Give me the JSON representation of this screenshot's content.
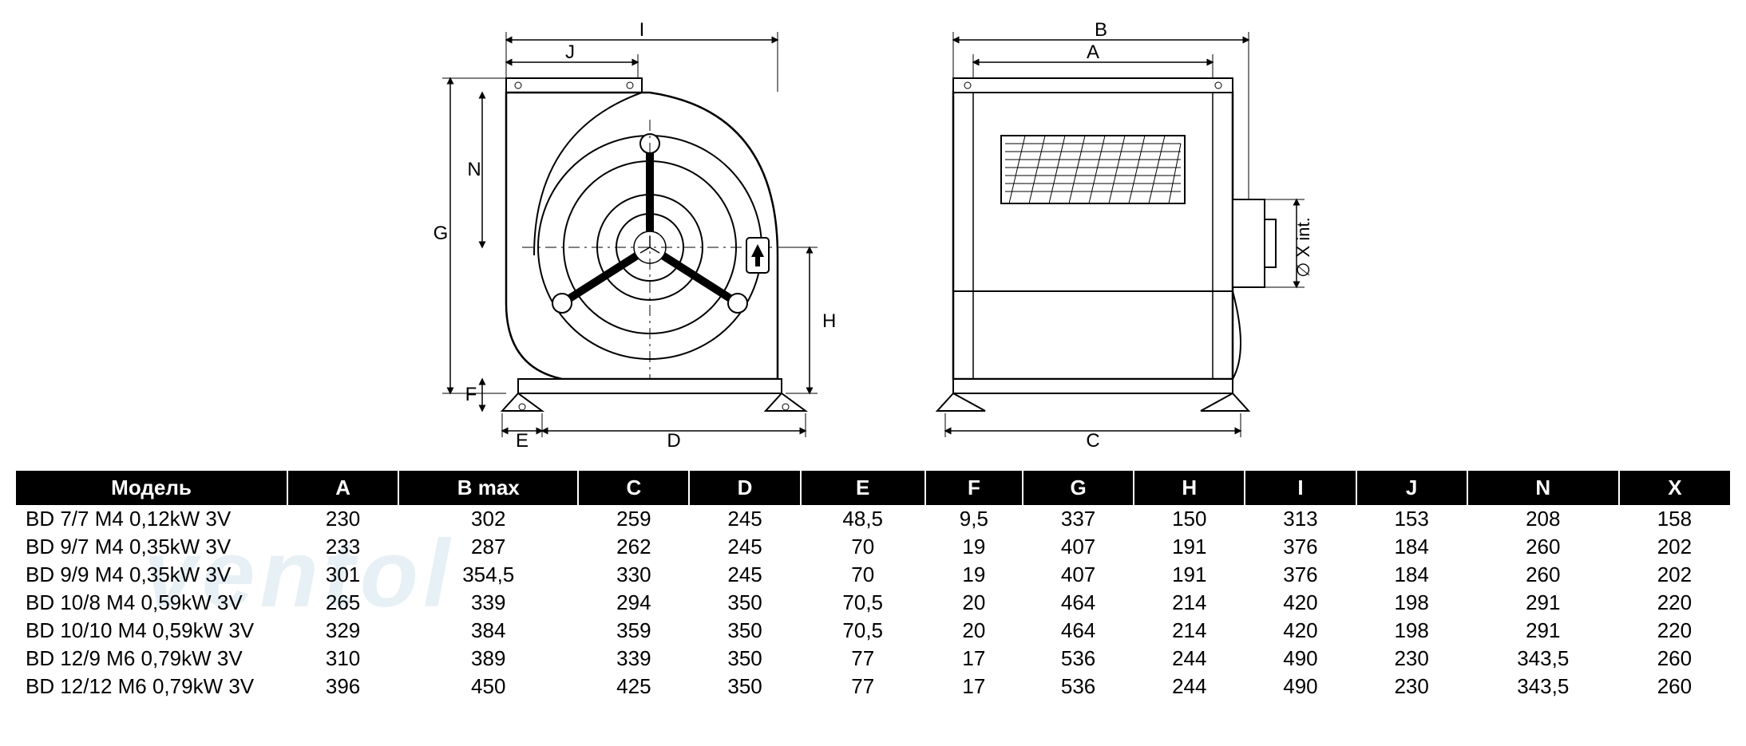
{
  "watermark_text": "ventol",
  "diagram_left": {
    "labels": {
      "I": "I",
      "J": "J",
      "G": "G",
      "N": "N",
      "F": "F",
      "E": "E",
      "D": "D",
      "H": "H"
    },
    "stroke": "#000000",
    "fill_hatch": "#bfbfbf"
  },
  "diagram_right": {
    "labels": {
      "B": "B",
      "A": "A",
      "C": "C",
      "X": "∅ X int."
    },
    "stroke": "#000000"
  },
  "table": {
    "header_bg": "#000000",
    "header_fg": "#ffffff",
    "columns": [
      "Модель",
      "A",
      "B max",
      "C",
      "D",
      "E",
      "F",
      "G",
      "H",
      "I",
      "J",
      "N",
      "X"
    ],
    "rows": [
      [
        "BD 7/7 M4 0,12kW 3V",
        "230",
        "302",
        "259",
        "245",
        "48,5",
        "9,5",
        "337",
        "150",
        "313",
        "153",
        "208",
        "158"
      ],
      [
        "BD 9/7 M4 0,35kW 3V",
        "233",
        "287",
        "262",
        "245",
        "70",
        "19",
        "407",
        "191",
        "376",
        "184",
        "260",
        "202"
      ],
      [
        "BD 9/9 M4 0,35kW 3V",
        "301",
        "354,5",
        "330",
        "245",
        "70",
        "19",
        "407",
        "191",
        "376",
        "184",
        "260",
        "202"
      ],
      [
        "BD 10/8 M4 0,59kW 3V",
        "265",
        "339",
        "294",
        "350",
        "70,5",
        "20",
        "464",
        "214",
        "420",
        "198",
        "291",
        "220"
      ],
      [
        "BD 10/10 M4 0,59kW 3V",
        "329",
        "384",
        "359",
        "350",
        "70,5",
        "20",
        "464",
        "214",
        "420",
        "198",
        "291",
        "220"
      ],
      [
        "BD 12/9 M6 0,79kW 3V",
        "310",
        "389",
        "339",
        "350",
        "77",
        "17",
        "536",
        "244",
        "490",
        "230",
        "343,5",
        "260"
      ],
      [
        "BD 12/12 M6 0,79kW 3V",
        "396",
        "450",
        "425",
        "350",
        "77",
        "17",
        "536",
        "244",
        "490",
        "230",
        "343,5",
        "260"
      ]
    ]
  }
}
